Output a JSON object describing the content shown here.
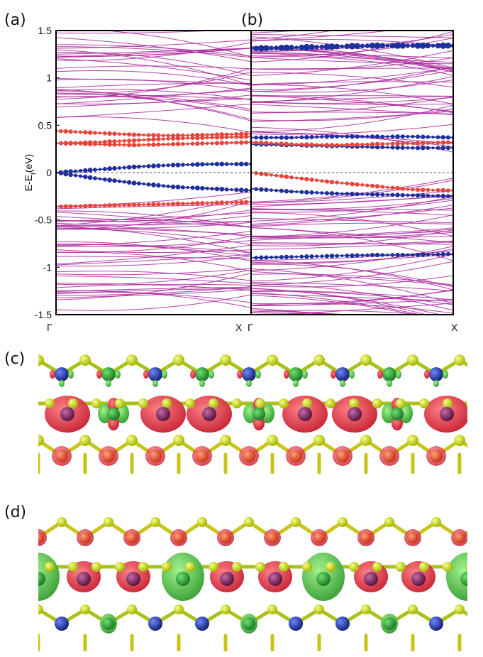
{
  "panel_labels": [
    "(a)",
    "(b)",
    "(c)",
    "(d)"
  ],
  "chart_data": [
    {
      "type": "line",
      "panel": "(a)",
      "title": "",
      "xlabel": "",
      "ylabel": "E-E_f(eV)",
      "ylabel_main": "E-E",
      "ylabel_sub": "f",
      "ylabel_tail": "(eV)",
      "x_ticks": [
        "Γ",
        "X"
      ],
      "y_ticks": [
        "1.5",
        "1",
        "0.5",
        "0",
        "-0.5",
        "-1",
        "-1.5"
      ],
      "ylim": [
        -1.5,
        1.5
      ],
      "fermi_level": 0,
      "series": [
        {
          "name": "red-weighted band 1",
          "color": "#e8453c",
          "values": [
            0.31,
            0.32,
            0.34,
            0.36,
            0.37,
            0.38
          ]
        },
        {
          "name": "red-weighted band 2",
          "color": "#e8453c",
          "values": [
            0.31,
            0.3,
            0.29,
            0.3,
            0.31,
            0.32
          ]
        },
        {
          "name": "red-weighted band 3",
          "color": "#e8453c",
          "values": [
            0.44,
            0.42,
            0.4,
            0.39,
            0.4,
            0.41
          ]
        },
        {
          "name": "blue-weighted band 1",
          "color": "#1f2f9c",
          "values": [
            0.0,
            0.03,
            0.06,
            0.08,
            0.09,
            0.09
          ]
        },
        {
          "name": "blue-weighted band 2",
          "color": "#1f2f9c",
          "values": [
            0.0,
            -0.06,
            -0.11,
            -0.15,
            -0.17,
            -0.19
          ]
        },
        {
          "name": "red-weighted band 4",
          "color": "#e8453c",
          "values": [
            -0.36,
            -0.35,
            -0.34,
            -0.33,
            -0.32,
            -0.31
          ]
        }
      ]
    },
    {
      "type": "line",
      "panel": "(b)",
      "title": "",
      "xlabel": "",
      "ylabel": "",
      "x_ticks": [
        "Γ",
        "X"
      ],
      "ylim": [
        -1.5,
        1.5
      ],
      "fermi_level": 0,
      "series": [
        {
          "name": "blue-weighted flat band 1",
          "color": "#1f2f9c",
          "values": [
            1.31,
            1.32,
            1.33,
            1.34,
            1.34,
            1.34
          ]
        },
        {
          "name": "blue-weighted band 2",
          "color": "#1f2f9c",
          "values": [
            0.37,
            0.37,
            0.38,
            0.38,
            0.38,
            0.37
          ]
        },
        {
          "name": "blue-weighted band 3",
          "color": "#1f2f9c",
          "values": [
            0.3,
            0.29,
            0.28,
            0.27,
            0.26,
            0.26
          ]
        },
        {
          "name": "red-weighted band 1",
          "color": "#e8453c",
          "values": [
            0.32,
            0.3,
            0.29,
            0.3,
            0.31,
            0.32
          ]
        },
        {
          "name": "red-weighted band 2",
          "color": "#e8453c",
          "values": [
            0.0,
            -0.05,
            -0.1,
            -0.14,
            -0.18,
            -0.19
          ]
        },
        {
          "name": "blue-weighted band 4",
          "color": "#1f2f9c",
          "values": [
            -0.17,
            -0.2,
            -0.22,
            -0.23,
            -0.24,
            -0.25
          ]
        },
        {
          "name": "blue-weighted band 5",
          "color": "#1f2f9c",
          "values": [
            -0.9,
            -0.89,
            -0.88,
            -0.87,
            -0.87,
            -0.86
          ]
        }
      ]
    }
  ],
  "colors": {
    "bands": "#a8239a",
    "red_weight": "#e8453c",
    "blue_weight": "#1f2f9c",
    "atom_yellow": "#d6e21a",
    "atom_blue": "#2443b8",
    "atom_red": "#ef5a2e",
    "atom_purple": "#8a2a6e",
    "iso_red": "#e0323f",
    "iso_green": "#4cc23a"
  }
}
